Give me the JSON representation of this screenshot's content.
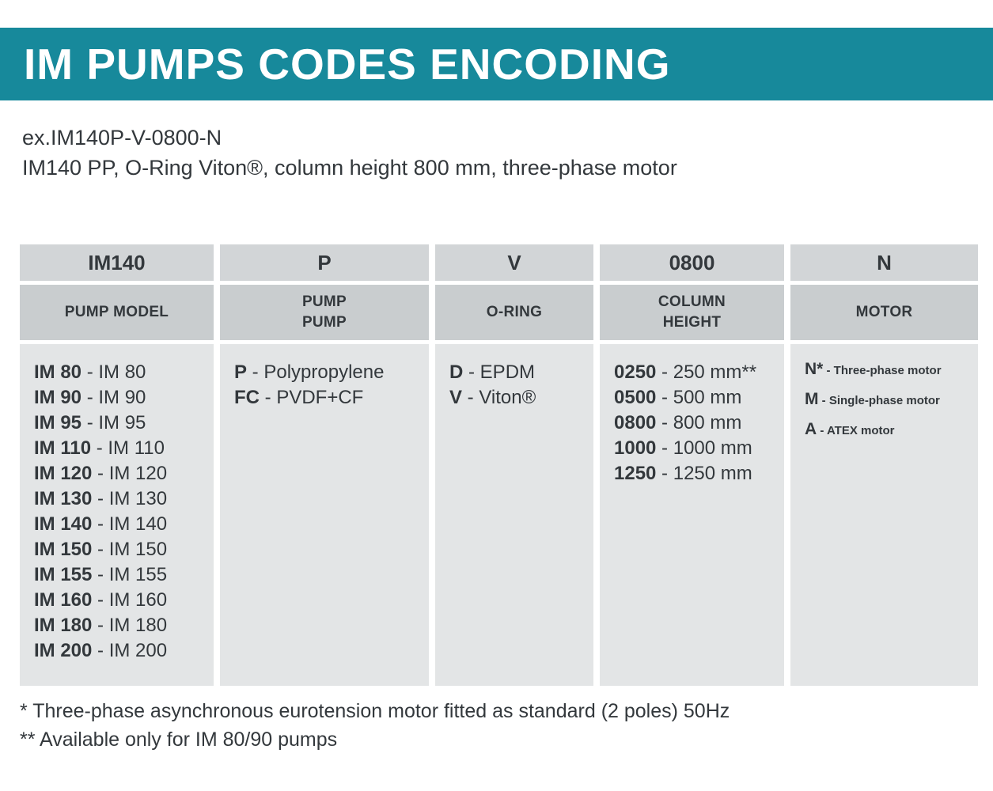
{
  "page": {
    "title": "IM PUMPS CODES ENCODING",
    "example_code": "ex.IM140P-V-0800-N",
    "example_description": "IM140 PP, O-Ring Viton®, column height 800 mm, three-phase motor",
    "footnote_three_phase": "* Three-phase asynchronous eurotension motor fitted as standard (2 poles) 50Hz",
    "footnote_availability": "** Available only for IM 80/90 pumps"
  },
  "colors": {
    "banner": "#17899b",
    "header_cell": "#d2d5d7",
    "subheader_cell": "#c9cdcf",
    "body_cell": "#e3e5e6",
    "text": "#33383c"
  },
  "table": {
    "columns": [
      {
        "key": "pump-model",
        "code": "IM140",
        "label_lines": [
          "PUMP MODEL"
        ],
        "entries": [
          {
            "code": "IM 80",
            "desc": "IM 80"
          },
          {
            "code": "IM 90",
            "desc": "IM 90"
          },
          {
            "code": "IM 95",
            "desc": "IM 95"
          },
          {
            "code": "IM 110",
            "desc": "IM 110"
          },
          {
            "code": "IM 120",
            "desc": "IM 120"
          },
          {
            "code": "IM 130",
            "desc": "IM 130"
          },
          {
            "code": "IM 140",
            "desc": "IM 140"
          },
          {
            "code": "IM 150",
            "desc": "IM 150"
          },
          {
            "code": "IM 155",
            "desc": "IM 155"
          },
          {
            "code": "IM 160",
            "desc": "IM 160"
          },
          {
            "code": "IM 180",
            "desc": "IM 180"
          },
          {
            "code": "IM 200",
            "desc": "IM 200"
          }
        ]
      },
      {
        "key": "pump-body",
        "code": "P",
        "label_lines": [
          "PUMP",
          "PUMP"
        ],
        "entries": [
          {
            "code": "P",
            "desc": "Polypropylene"
          },
          {
            "code": "FC",
            "desc": "PVDF+CF"
          }
        ]
      },
      {
        "key": "o-ring",
        "code": "V",
        "label_lines": [
          "O-RING"
        ],
        "entries": [
          {
            "code": "D",
            "desc": "EPDM"
          },
          {
            "code": "V",
            "desc": "Viton®"
          }
        ]
      },
      {
        "key": "column-height",
        "code": "0800",
        "label_lines": [
          "COLUMN",
          "HEIGHT"
        ],
        "entries": [
          {
            "code": "0250",
            "desc": "250 mm**"
          },
          {
            "code": "0500",
            "desc": "500 mm"
          },
          {
            "code": "0800",
            "desc": "800 mm"
          },
          {
            "code": "1000",
            "desc": "1000 mm"
          },
          {
            "code": "1250",
            "desc": "1250 mm"
          }
        ]
      },
      {
        "key": "motor",
        "code": "N",
        "label_lines": [
          "MOTOR"
        ],
        "entries": [
          {
            "code": "N*",
            "desc": "Three-phase motor"
          },
          {
            "code": "M",
            "desc": "Single-phase motor"
          },
          {
            "code": "A",
            "desc": "ATEX motor"
          }
        ]
      }
    ]
  }
}
